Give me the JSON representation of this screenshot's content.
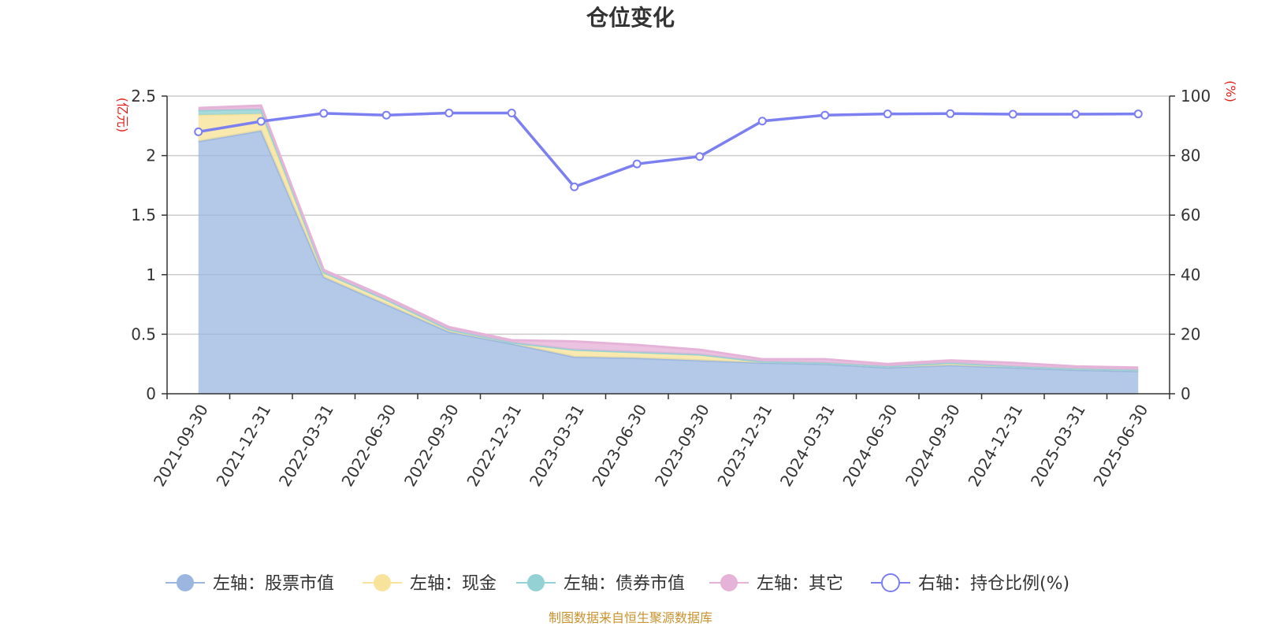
{
  "chart_data": {
    "type": "area",
    "title": "仓位变化",
    "x": [
      "2021-09-30",
      "2021-12-31",
      "2022-03-31",
      "2022-06-30",
      "2022-09-30",
      "2022-12-31",
      "2023-03-31",
      "2023-06-30",
      "2023-09-30",
      "2023-12-31",
      "2024-03-31",
      "2024-06-30",
      "2024-09-30",
      "2024-12-31",
      "2025-03-31",
      "2025-06-30"
    ],
    "left_axis": {
      "unit": "(亿元)",
      "ylim": [
        0,
        2.5
      ],
      "ticks": [
        "0",
        "0.5",
        "1",
        "1.5",
        "2",
        "2.5"
      ]
    },
    "right_axis": {
      "unit": "(%)",
      "ylim": [
        0,
        100
      ],
      "ticks": [
        "0",
        "20",
        "40",
        "60",
        "80",
        "100"
      ]
    },
    "grid": true,
    "legend_position": "bottom",
    "series": [
      {
        "name": "左轴：股票市值",
        "axis": "left",
        "stacked": true,
        "color": "#9bb7e0",
        "values": [
          2.12,
          2.21,
          0.98,
          0.75,
          0.52,
          0.42,
          0.31,
          0.3,
          0.28,
          0.26,
          0.25,
          0.22,
          0.24,
          0.22,
          0.2,
          0.19
        ]
      },
      {
        "name": "左轴：现金",
        "axis": "left",
        "stacked": true,
        "color": "#f7e39a",
        "values": [
          0.22,
          0.14,
          0.04,
          0.04,
          0.02,
          0.01,
          0.06,
          0.05,
          0.05,
          0.01,
          0.01,
          0.01,
          0.02,
          0.01,
          0.01,
          0.01
        ]
      },
      {
        "name": "左轴：债券市值",
        "axis": "left",
        "stacked": true,
        "color": "#93d2d4",
        "values": [
          0.04,
          0.04,
          0.0,
          0.0,
          0.0,
          0.0,
          0.0,
          0.0,
          0.0,
          0.0,
          0.0,
          0.0,
          0.0,
          0.0,
          0.0,
          0.0
        ]
      },
      {
        "name": "左轴：其它",
        "axis": "left",
        "stacked": true,
        "color": "#e6b3d8",
        "values": [
          0.02,
          0.03,
          0.02,
          0.02,
          0.02,
          0.02,
          0.07,
          0.06,
          0.04,
          0.02,
          0.03,
          0.02,
          0.02,
          0.03,
          0.02,
          0.02
        ]
      },
      {
        "name": "右轴：持仓比例(%)",
        "axis": "right",
        "type": "line",
        "color": "#7b7ff0",
        "values": [
          88.0,
          91.5,
          94.2,
          93.6,
          94.3,
          94.3,
          69.5,
          77.2,
          79.7,
          91.6,
          93.6,
          94.0,
          94.1,
          93.9,
          93.9,
          94.0
        ]
      }
    ]
  },
  "source_note": "制图数据来自恒生聚源数据库"
}
